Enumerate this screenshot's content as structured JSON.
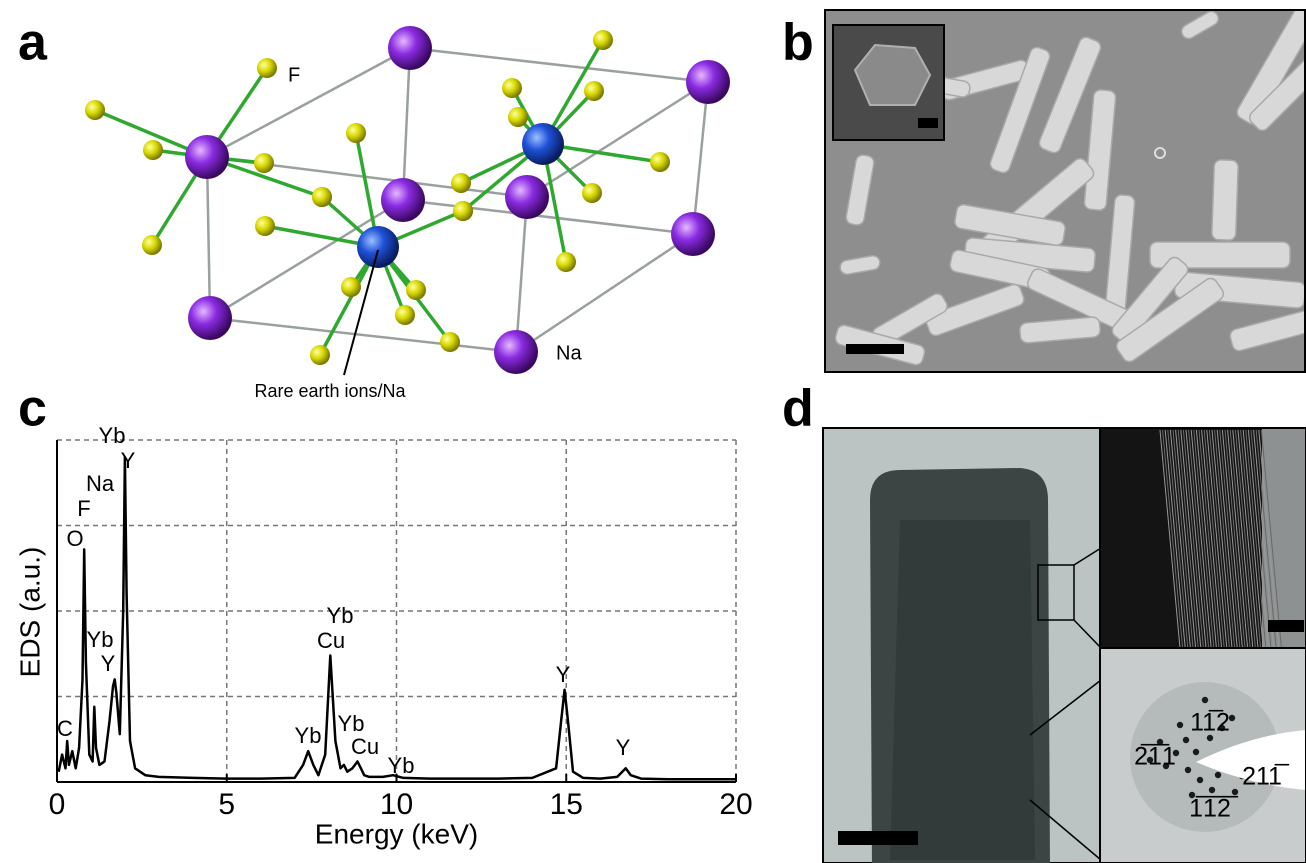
{
  "panel_labels": [
    "a",
    "b",
    "c",
    "d"
  ],
  "structure": {
    "f_label": "F",
    "na_label": "Na",
    "center_label": "Rare earth ions/Na"
  },
  "diffraction": {
    "labels": [
      "2̅1̅1",
      "11̅2",
      "211̅",
      "1̅1̅2̅"
    ]
  },
  "chart_data": {
    "type": "line",
    "xlabel": "Energy (keV)",
    "ylabel": "EDS (a.u.)",
    "x": [
      0.05,
      0.15,
      0.25,
      0.3,
      0.35,
      0.45,
      0.55,
      0.65,
      0.75,
      0.8,
      0.85,
      0.95,
      1.05,
      1.1,
      1.15,
      1.25,
      1.4,
      1.55,
      1.65,
      1.7,
      1.75,
      1.85,
      1.95,
      2.0,
      2.05,
      2.15,
      2.3,
      2.6,
      3,
      4,
      5,
      6,
      7,
      7.25,
      7.4,
      7.55,
      7.7,
      7.9,
      8.05,
      8.2,
      8.35,
      8.45,
      8.55,
      8.7,
      8.85,
      8.95,
      9.05,
      9.2,
      9.6,
      9.9,
      10.2,
      11,
      12,
      13,
      14,
      14.7,
      14.85,
      14.95,
      15.05,
      15.2,
      15.5,
      16,
      16.5,
      16.65,
      16.75,
      16.9,
      17.2,
      18,
      19,
      20
    ],
    "series": [
      {
        "color": "#000000",
        "values": [
          3,
          8,
          4,
          12,
          5,
          9,
          4,
          10,
          30,
          68,
          35,
          8,
          6,
          22,
          10,
          5,
          6,
          18,
          28,
          30,
          26,
          14,
          50,
          95,
          55,
          12,
          4,
          2,
          1.5,
          1.2,
          1,
          1,
          1.2,
          5,
          9,
          5,
          2,
          8,
          37,
          12,
          4,
          5,
          3,
          4,
          6,
          4,
          2,
          1.5,
          1.5,
          2,
          1.2,
          1,
          1,
          1,
          1.2,
          4,
          18,
          27,
          18,
          3,
          1.2,
          1,
          1.5,
          3,
          4,
          2,
          1,
          0.8,
          0.8,
          0.8
        ]
      }
    ],
    "xlim": [
      0,
      20
    ],
    "ylim": [
      0,
      100
    ],
    "xticks": [
      0,
      5,
      10,
      15,
      20
    ],
    "yticks": [
      0,
      25,
      50,
      75,
      100
    ],
    "grid": true,
    "annotations": [
      "Yb",
      "Y",
      "Na",
      "F",
      "O",
      "Yb",
      "Y",
      "C",
      "Yb",
      "Cu",
      "Yb",
      "Yb",
      "Cu",
      "Yb",
      "Y",
      "Y"
    ]
  }
}
